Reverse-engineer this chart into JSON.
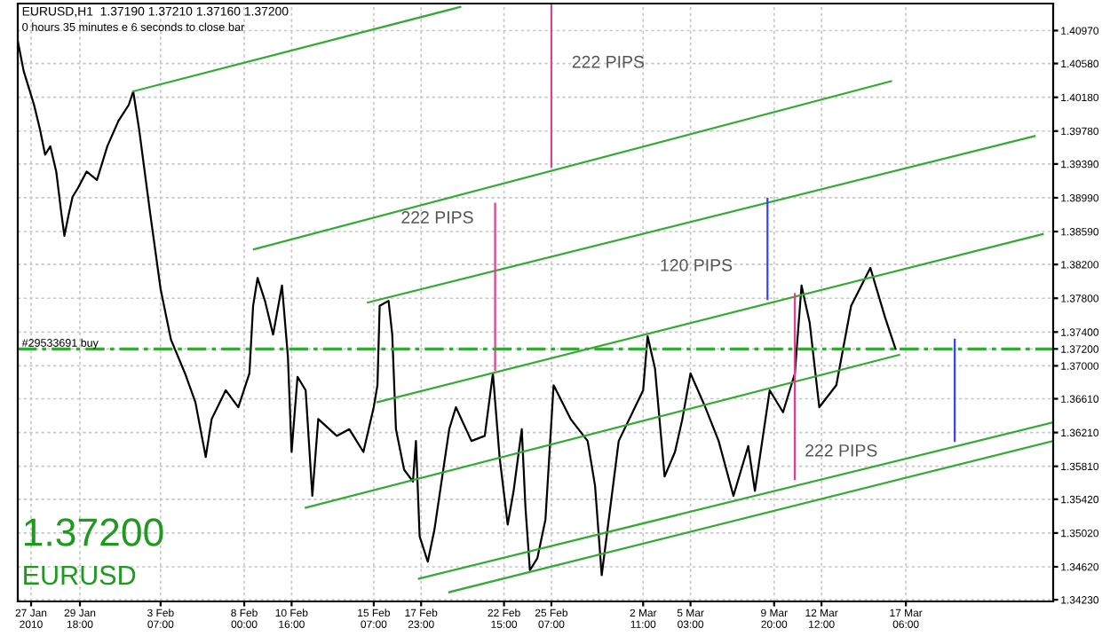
{
  "chart_data": {
    "type": "line",
    "title": "EURUSD,H1  1.37190 1.37210 1.37160 1.37200",
    "subtitle": "0 hours 35 minutes e 6 seconds to close bar",
    "xlim": [
      "2010-01-26T06:00",
      "2010-03-25T13:00"
    ],
    "ylim": [
      1.3421,
      1.4129
    ],
    "xticks": [
      {
        "value": "2010-01-27T00:00",
        "label": "27 Jan 2010"
      },
      {
        "value": "2010-01-29T18:00",
        "label": "29 Jan 18:00"
      },
      {
        "value": "2010-02-03T07:00",
        "label": "3 Feb 07:00"
      },
      {
        "value": "2010-02-08T00:00",
        "label": "8 Feb 00:00"
      },
      {
        "value": "2010-02-10T16:00",
        "label": "10 Feb 16:00"
      },
      {
        "value": "2010-02-15T07:00",
        "label": "15 Feb 07:00"
      },
      {
        "value": "2010-02-17T23:00",
        "label": "17 Feb 23:00"
      },
      {
        "value": "2010-02-22T15:00",
        "label": "22 Feb 15:00"
      },
      {
        "value": "2010-02-25T07:00",
        "label": "25 Feb 07:00"
      },
      {
        "value": "2010-03-02T11:00",
        "label": "2 Mar 11:00"
      },
      {
        "value": "2010-03-05T03:00",
        "label": "5 Mar 03:00"
      },
      {
        "value": "2010-03-09T20:00",
        "label": "9 Mar 20:00"
      },
      {
        "value": "2010-03-12T12:00",
        "label": "12 Mar 12:00"
      },
      {
        "value": "2010-03-17T06:00",
        "label": "17 Mar 06:00"
      }
    ],
    "yticks": [
      {
        "value": 1.4097,
        "label": "1.40970"
      },
      {
        "value": 1.4058,
        "label": "1.40580"
      },
      {
        "value": 1.4018,
        "label": "1.40180"
      },
      {
        "value": 1.3978,
        "label": "1.39780"
      },
      {
        "value": 1.3939,
        "label": "1.39390"
      },
      {
        "value": 1.3899,
        "label": "1.38990"
      },
      {
        "value": 1.3859,
        "label": "1.38590"
      },
      {
        "value": 1.382,
        "label": "1.38200"
      },
      {
        "value": 1.378,
        "label": "1.37800"
      },
      {
        "value": 1.374,
        "label": "1.37400"
      },
      {
        "value": 1.37,
        "label": "1.37000"
      },
      {
        "value": 1.3661,
        "label": "1.36610"
      },
      {
        "value": 1.3621,
        "label": "1.36210"
      },
      {
        "value": 1.3581,
        "label": "1.35810"
      },
      {
        "value": 1.3542,
        "label": "1.35420"
      },
      {
        "value": 1.3502,
        "label": "1.35020"
      },
      {
        "value": 1.3462,
        "label": "1.34620"
      },
      {
        "value": 1.3423,
        "label": "1.34230"
      },
      {
        "value": 1.372,
        "label": "1.37200"
      }
    ],
    "grid": true,
    "line_style": "solid",
    "series": [
      {
        "color": "#000000",
        "x": [
          "2010-01-26T06:00",
          "2010-01-26T14:00",
          "2010-01-26T21:00",
          "2010-01-27T04:00",
          "2010-01-27T12:00",
          "2010-01-27T19:00",
          "2010-01-28T02:00",
          "2010-01-28T10:00",
          "2010-01-28T17:00",
          "2010-01-28T21:00",
          "2010-01-29T03:00",
          "2010-01-29T08:00",
          "2010-01-29T15:00",
          "2010-01-30T03:00",
          "2010-01-30T17:00",
          "2010-01-31T07:00",
          "2010-01-31T22:00",
          "2010-02-01T12:00",
          "2010-02-01T18:00",
          "2010-02-02T02:00",
          "2010-02-02T17:00",
          "2010-02-03T07:00",
          "2010-02-03T21:00",
          "2010-02-04T16:00",
          "2010-02-05T06:00",
          "2010-02-05T20:00",
          "2010-02-06T04:00",
          "2010-02-06T23:00",
          "2010-02-07T16:00",
          "2010-02-08T07:00",
          "2010-02-08T12:00",
          "2010-02-08T18:00",
          "2010-02-09T04:00",
          "2010-02-09T15:00",
          "2010-02-10T03:00",
          "2010-02-10T11:00",
          "2010-02-10T16:00",
          "2010-02-11T00:00",
          "2010-02-11T11:00",
          "2010-02-11T20:00",
          "2010-02-12T04:00",
          "2010-02-13T05:00",
          "2010-02-13T22:00",
          "2010-02-14T17:00",
          "2010-02-15T07:00",
          "2010-02-15T12:00",
          "2010-02-15T15:00",
          "2010-02-16T03:00",
          "2010-02-16T08:00",
          "2010-02-16T13:00",
          "2010-02-17T00:00",
          "2010-02-17T12:00",
          "2010-02-17T16:00",
          "2010-02-17T21:00",
          "2010-02-18T08:00",
          "2010-02-18T17:00",
          "2010-02-19T13:00",
          "2010-02-19T22:00",
          "2010-02-20T19:00",
          "2010-02-21T13:00",
          "2010-02-22T00:00",
          "2010-02-22T09:00",
          "2010-02-22T20:00",
          "2010-02-23T04:00",
          "2010-02-23T15:00",
          "2010-02-23T20:00",
          "2010-02-24T02:00",
          "2010-02-24T12:00",
          "2010-02-24T23:00",
          "2010-02-25T10:00",
          "2010-02-26T09:00",
          "2010-02-27T08:00",
          "2010-02-27T18:00",
          "2010-02-28T03:00",
          "2010-03-01T02:00",
          "2010-03-02T11:00",
          "2010-03-02T17:00",
          "2010-03-03T03:00",
          "2010-03-03T16:00",
          "2010-03-04T06:00",
          "2010-03-04T16:00",
          "2010-03-05T03:00",
          "2010-03-05T23:00",
          "2010-03-06T17:00",
          "2010-03-07T13:00",
          "2010-03-08T09:00",
          "2010-03-08T18:00",
          "2010-03-09T14:00",
          "2010-03-10T08:00",
          "2010-03-11T00:00",
          "2010-03-11T09:00",
          "2010-03-11T20:00",
          "2010-03-12T09:00",
          "2010-03-13T08:00",
          "2010-03-14T04:00",
          "2010-03-15T06:00",
          "2010-03-16T02:00",
          "2010-03-16T16:00"
        ],
        "values": [
          1.4085,
          1.4049,
          1.4029,
          1.4009,
          1.398,
          1.395,
          1.396,
          1.393,
          1.388,
          1.3854,
          1.388,
          1.39,
          1.391,
          1.393,
          1.392,
          1.396,
          1.399,
          1.4009,
          1.4025,
          1.398,
          1.388,
          1.3791,
          1.3731,
          1.3691,
          1.3657,
          1.3592,
          1.3637,
          1.3671,
          1.3651,
          1.3691,
          1.3771,
          1.3804,
          1.3777,
          1.3737,
          1.3795,
          1.3711,
          1.3598,
          1.3687,
          1.3671,
          1.3546,
          1.3637,
          1.3617,
          1.3625,
          1.3598,
          1.3651,
          1.3677,
          1.3771,
          1.3777,
          1.3737,
          1.3625,
          1.3577,
          1.3563,
          1.3611,
          1.3498,
          1.3468,
          1.3506,
          1.3625,
          1.3651,
          1.3611,
          1.3617,
          1.3691,
          1.3592,
          1.3512,
          1.3552,
          1.3625,
          1.3532,
          1.3458,
          1.3472,
          1.3518,
          1.3677,
          1.3637,
          1.3611,
          1.3558,
          1.3452,
          1.3611,
          1.3671,
          1.3735,
          1.3697,
          1.3569,
          1.3598,
          1.3637,
          1.3691,
          1.3651,
          1.3611,
          1.3546,
          1.3605,
          1.3552,
          1.3671,
          1.3645,
          1.3691,
          1.3795,
          1.3751,
          1.3651,
          1.3677,
          1.3771,
          1.3816,
          1.3757,
          1.372
        ]
      },
      {
        "color": "#33aa33",
        "x": [
          "2010-02-01T18:00",
          "2010-02-20T04:00"
        ],
        "values": [
          1.4025,
          1.4125
        ]
      },
      {
        "color": "#33aa33",
        "x": [
          "2010-02-08T13:00",
          "2010-03-16T10:00"
        ],
        "values": [
          1.3838,
          1.4037
        ]
      },
      {
        "color": "#33aa33",
        "x": [
          "2010-02-14T23:00",
          "2010-03-24T12:00"
        ],
        "values": [
          1.3775,
          1.3972
        ]
      },
      {
        "color": "#33aa33",
        "x": [
          "2010-02-15T12:00",
          "2010-03-24T23:00"
        ],
        "values": [
          1.3657,
          1.3856
        ]
      },
      {
        "color": "#33aa33",
        "x": [
          "2010-02-11T11:00",
          "2010-03-16T21:00"
        ],
        "values": [
          1.3532,
          1.3713
        ]
      },
      {
        "color": "#33aa33",
        "x": [
          "2010-02-17T20:00",
          "2010-03-25T13:00"
        ],
        "values": [
          1.3448,
          1.3633
        ]
      },
      {
        "color": "#33aa33",
        "x": [
          "2010-02-19T13:00",
          "2010-03-25T13:00"
        ],
        "values": [
          1.3432,
          1.3611
        ]
      },
      {
        "color": "#e0408a",
        "x": [
          "2010-02-25T07:00",
          "2010-02-25T07:00"
        ],
        "values": [
          1.4128,
          1.3936
        ]
      },
      {
        "color": "#e0408a",
        "x": [
          "2010-02-22T03:00",
          "2010-02-22T03:00"
        ],
        "values": [
          1.3892,
          1.3695
        ]
      },
      {
        "color": "#3344ee",
        "x": [
          "2010-03-09T11:00",
          "2010-03-09T11:00"
        ],
        "values": [
          1.3898,
          1.3779
        ]
      },
      {
        "color": "#e0408a",
        "x": [
          "2010-03-11T00:00",
          "2010-03-11T00:00"
        ],
        "values": [
          1.3785,
          1.3566
        ]
      },
      {
        "color": "#3344ee",
        "x": [
          "2010-03-20T00:00",
          "2010-03-20T00:00"
        ],
        "values": [
          1.3731,
          1.3611
        ]
      }
    ],
    "ref_lines": [
      {
        "axis": "y",
        "value": 1.372,
        "label": "#29533691 buy",
        "color": "#33aa33",
        "line_style": "dashdot"
      }
    ],
    "annotations": [
      "222 PIPS",
      "222 PIPS",
      "120 PIPS",
      "222 PIPS",
      "1.37200",
      "EURUSD"
    ]
  }
}
